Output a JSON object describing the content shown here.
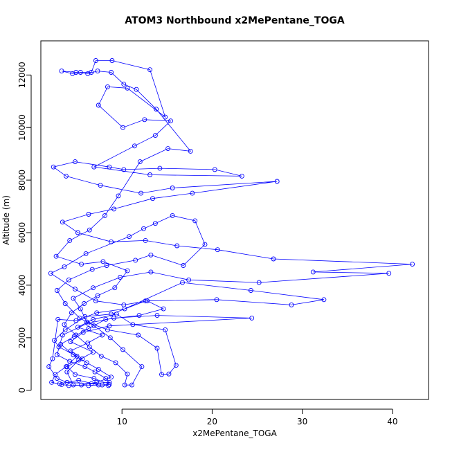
{
  "chart_data": {
    "type": "line",
    "title": "ATOM3 Northbound x2MePentane_TOGA",
    "xlabel": "x2MePentane_TOGA",
    "ylabel": "Altitude (m)",
    "xlim": [
      1,
      44
    ],
    "ylim": [
      -350,
      13300
    ],
    "xticks": [
      10,
      20,
      30,
      40
    ],
    "yticks": [
      0,
      2000,
      4000,
      6000,
      8000,
      10000,
      12000
    ],
    "series_color": "#0000ff",
    "markers": "open-circle",
    "grid": false,
    "series": [
      {
        "points": [
          [
            3.1,
            250
          ],
          [
            5.2,
            380
          ],
          [
            7.4,
            200
          ],
          [
            8.6,
            220
          ],
          [
            6.9,
            450
          ],
          [
            4.8,
            600
          ],
          [
            3.9,
            900
          ],
          [
            5.6,
            1200
          ],
          [
            4.3,
            1500
          ],
          [
            6.2,
            1800
          ],
          [
            7.8,
            2100
          ],
          [
            5.1,
            2400
          ],
          [
            6.8,
            2700
          ],
          [
            9.4,
            2900
          ],
          [
            11.2,
            2500
          ],
          [
            14.8,
            2300
          ],
          [
            16.0,
            950
          ],
          [
            15.2,
            620
          ],
          [
            14.4,
            600
          ],
          [
            13.9,
            1600
          ],
          [
            11.8,
            2100
          ],
          [
            8.4,
            2300
          ],
          [
            6.1,
            2600
          ],
          [
            5.4,
            3100
          ],
          [
            4.6,
            3500
          ],
          [
            6.8,
            3900
          ],
          [
            9.8,
            4300
          ],
          [
            13.2,
            4500
          ],
          [
            17.4,
            4200
          ],
          [
            25.2,
            4100
          ],
          [
            39.6,
            4450
          ],
          [
            31.2,
            4500
          ],
          [
            42.2,
            4800
          ],
          [
            26.8,
            5000
          ],
          [
            20.6,
            5350
          ],
          [
            16.1,
            5500
          ],
          [
            12.6,
            5700
          ],
          [
            8.8,
            5650
          ],
          [
            5.1,
            6000
          ],
          [
            3.4,
            6400
          ],
          [
            6.3,
            6700
          ],
          [
            9.1,
            6900
          ],
          [
            13.4,
            7300
          ],
          [
            17.8,
            7500
          ],
          [
            27.2,
            7950
          ],
          [
            15.6,
            7700
          ],
          [
            12.1,
            7500
          ],
          [
            7.6,
            7800
          ],
          [
            3.8,
            8150
          ],
          [
            2.4,
            8500
          ],
          [
            4.8,
            8700
          ],
          [
            8.6,
            8500
          ],
          [
            10.2,
            8400
          ],
          [
            14.2,
            8450
          ],
          [
            20.3,
            8400
          ],
          [
            23.3,
            8150
          ],
          [
            13.1,
            8200
          ],
          [
            6.9,
            8500
          ],
          [
            11.4,
            9300
          ],
          [
            13.7,
            9700
          ],
          [
            15.4,
            10250
          ],
          [
            12.5,
            10300
          ],
          [
            10.1,
            10000
          ],
          [
            7.4,
            10850
          ],
          [
            8.4,
            11550
          ],
          [
            10.6,
            11500
          ],
          [
            14.8,
            10400
          ],
          [
            13.1,
            12200
          ],
          [
            8.9,
            12550
          ],
          [
            7.1,
            12550
          ],
          [
            6.6,
            12100
          ],
          [
            5.4,
            12100
          ],
          [
            4.5,
            12050
          ],
          [
            3.3,
            12150
          ],
          [
            4.9,
            12100
          ],
          [
            6.2,
            12050
          ],
          [
            7.3,
            12150
          ],
          [
            8.8,
            12100
          ],
          [
            10.2,
            11650
          ],
          [
            11.6,
            11450
          ],
          [
            13.8,
            10700
          ],
          [
            17.6,
            9100
          ],
          [
            15.1,
            9200
          ],
          [
            12.0,
            8700
          ],
          [
            9.6,
            7400
          ],
          [
            8.1,
            6650
          ],
          [
            6.4,
            6100
          ],
          [
            4.2,
            5700
          ],
          [
            2.7,
            5100
          ],
          [
            5.5,
            4800
          ],
          [
            7.9,
            4900
          ],
          [
            10.6,
            4550
          ],
          [
            9.2,
            3900
          ],
          [
            7.3,
            3600
          ],
          [
            5.8,
            3300
          ],
          [
            4.4,
            2950
          ],
          [
            3.6,
            2500
          ],
          [
            4.9,
            2100
          ],
          [
            6.4,
            1650
          ],
          [
            7.7,
            1300
          ],
          [
            9.3,
            1050
          ],
          [
            10.6,
            620
          ],
          [
            10.3,
            200
          ],
          [
            11.1,
            200
          ],
          [
            12.2,
            900
          ],
          [
            10.1,
            1550
          ],
          [
            8.7,
            2000
          ],
          [
            6.9,
            2450
          ],
          [
            5.3,
            2750
          ],
          [
            3.7,
            3300
          ],
          [
            2.8,
            3800
          ],
          [
            4.1,
            4200
          ],
          [
            6.7,
            4600
          ],
          [
            8.3,
            4750
          ],
          [
            11.5,
            4950
          ],
          [
            13.2,
            5150
          ],
          [
            16.8,
            4750
          ],
          [
            19.2,
            5550
          ],
          [
            18.1,
            6450
          ],
          [
            15.6,
            6650
          ],
          [
            13.7,
            6350
          ],
          [
            12.4,
            6150
          ],
          [
            10.8,
            5850
          ],
          [
            6.0,
            5200
          ],
          [
            3.6,
            4700
          ],
          [
            2.1,
            4450
          ],
          [
            4.8,
            3850
          ],
          [
            7.1,
            3400
          ],
          [
            10.2,
            3250
          ],
          [
            12.8,
            3400
          ],
          [
            14.6,
            3100
          ],
          [
            11.9,
            2850
          ],
          [
            8.2,
            2700
          ],
          [
            6.3,
            2350
          ],
          [
            4.7,
            2050
          ],
          [
            3.2,
            1750
          ],
          [
            4.6,
            1350
          ],
          [
            6.1,
            1050
          ],
          [
            7.4,
            800
          ],
          [
            8.8,
            500
          ],
          [
            7.2,
            300
          ],
          [
            5.5,
            200
          ],
          [
            4.1,
            180
          ],
          [
            3.3,
            220
          ],
          [
            2.2,
            300
          ],
          [
            2.6,
            600
          ],
          [
            3.8,
            900
          ],
          [
            5.0,
            1300
          ],
          [
            3.0,
            1650
          ],
          [
            2.5,
            1900
          ],
          [
            3.7,
            2300
          ],
          [
            5.9,
            2800
          ],
          [
            8.8,
            2900
          ],
          [
            12.6,
            3400
          ],
          [
            20.5,
            3450
          ],
          [
            28.8,
            3250
          ],
          [
            32.4,
            3450
          ],
          [
            24.3,
            3800
          ],
          [
            16.7,
            4100
          ],
          [
            10.3,
            3100
          ],
          [
            7.2,
            2950
          ],
          [
            4.9,
            2650
          ],
          [
            2.9,
            2700
          ],
          [
            2.3,
            1200
          ],
          [
            1.9,
            900
          ],
          [
            2.8,
            450
          ],
          [
            3.9,
            300
          ],
          [
            6.6,
            250
          ],
          [
            8.6,
            300
          ],
          [
            8.2,
            450
          ],
          [
            7.0,
            700
          ],
          [
            5.9,
            900
          ],
          [
            4.2,
            1100
          ],
          [
            2.8,
            1350
          ],
          [
            3.4,
            2100
          ],
          [
            6.2,
            2550
          ],
          [
            9.1,
            2750
          ],
          [
            13.9,
            2850
          ],
          [
            24.4,
            2750
          ],
          [
            8.6,
            2450
          ],
          [
            5.7,
            2200
          ],
          [
            4.3,
            1850
          ],
          [
            6.8,
            1450
          ],
          [
            5.2,
            1150
          ],
          [
            3.9,
            700
          ],
          [
            4.6,
            200
          ],
          [
            6.3,
            180
          ],
          [
            7.8,
            200
          ],
          [
            8.5,
            180
          ]
        ]
      }
    ]
  }
}
